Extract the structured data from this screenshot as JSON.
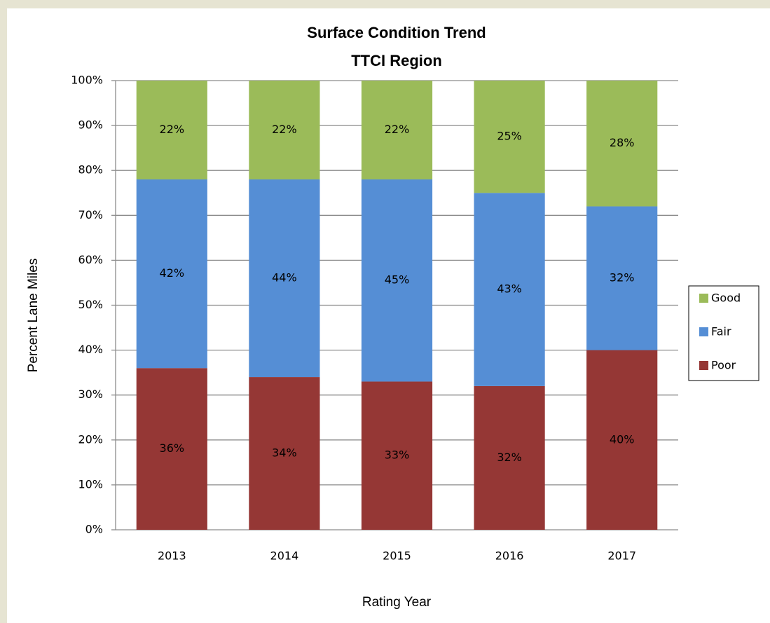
{
  "chart_data": {
    "type": "stacked_bar",
    "title": "Surface Condition Trend",
    "subtitle": "TTCI Region",
    "xlabel": "Rating Year",
    "ylabel": "Percent Lane Miles",
    "categories": [
      "2013",
      "2014",
      "2015",
      "2016",
      "2017"
    ],
    "series": [
      {
        "name": "Poor",
        "color": "#953735",
        "values": [
          36,
          34,
          33,
          32,
          40
        ],
        "value_labels": [
          "36%",
          "34%",
          "33%",
          "32%",
          "40%"
        ]
      },
      {
        "name": "Fair",
        "color": "#558ed5",
        "values": [
          42,
          44,
          45,
          43,
          32
        ],
        "value_labels": [
          "42%",
          "44%",
          "45%",
          "43%",
          "32%"
        ]
      },
      {
        "name": "Good",
        "color": "#9bbb59",
        "values": [
          22,
          22,
          22,
          25,
          28
        ],
        "value_labels": [
          "22%",
          "22%",
          "22%",
          "25%",
          "28%"
        ]
      }
    ],
    "ylim": [
      0,
      100
    ],
    "yticks": [
      {
        "value": 0,
        "label": "0%"
      },
      {
        "value": 10,
        "label": "10%"
      },
      {
        "value": 20,
        "label": "20%"
      },
      {
        "value": 30,
        "label": "30%"
      },
      {
        "value": 40,
        "label": "40%"
      },
      {
        "value": 50,
        "label": "50%"
      },
      {
        "value": 60,
        "label": "60%"
      },
      {
        "value": 70,
        "label": "70%"
      },
      {
        "value": 80,
        "label": "80%"
      },
      {
        "value": 90,
        "label": "90%"
      },
      {
        "value": 100,
        "label": "100%"
      }
    ],
    "grid": true,
    "legend": "right"
  }
}
